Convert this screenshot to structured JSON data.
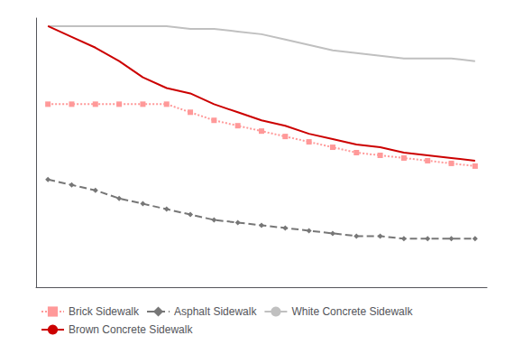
{
  "chart_data": {
    "type": "line",
    "x": [
      26,
      25,
      24,
      23,
      22,
      21,
      20,
      19,
      18,
      17,
      16,
      15,
      14,
      13,
      12,
      11,
      10,
      9,
      8
    ],
    "series": [
      {
        "name": "Brick Sidewalk",
        "color": "#ff9999",
        "line_style": "dotted",
        "marker": "square",
        "values": [
          68,
          68,
          68,
          68,
          68,
          68,
          65,
          62,
          60,
          58,
          56,
          54,
          52,
          50,
          49,
          48,
          47,
          46,
          45
        ]
      },
      {
        "name": "Asphalt Sidewalk",
        "color": "#777777",
        "line_style": "dashed",
        "marker": "diamond",
        "values": [
          40,
          38,
          36,
          33,
          31,
          29,
          27,
          25,
          24,
          23,
          22,
          21,
          20,
          19,
          19,
          18,
          18,
          18,
          18
        ]
      },
      {
        "name": "White Concrete Sidewalk",
        "color": "#c0c0c0",
        "line_style": "solid",
        "values": [
          97,
          97,
          97,
          97,
          97,
          97,
          96,
          96,
          95,
          94,
          92,
          90,
          88,
          87,
          86,
          85,
          85,
          85,
          84
        ]
      },
      {
        "name": "Brown Concrete Sidewalk",
        "color": "#cc0000",
        "line_style": "solid",
        "values": [
          97,
          93,
          89,
          84,
          78,
          74,
          72,
          68,
          65,
          62,
          60,
          57,
          55,
          53,
          52,
          50,
          49,
          48,
          47
        ]
      }
    ],
    "xlim": [
      26.5,
      7.5
    ],
    "ylim": [
      0,
      100
    ],
    "xticks": [],
    "yticks": [],
    "tick_labels": false,
    "grid": false,
    "legend": "lower left"
  }
}
